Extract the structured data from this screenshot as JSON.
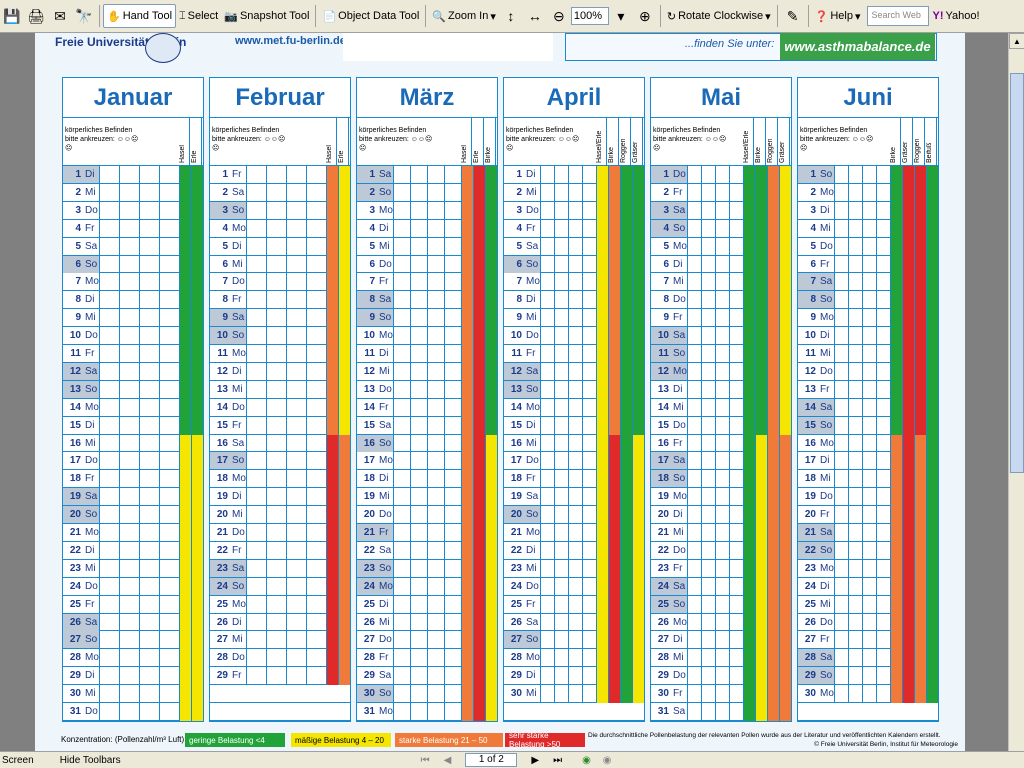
{
  "toolbar": {
    "hand_tool": "Hand Tool",
    "select": "Select",
    "snapshot_tool": "Snapshot Tool",
    "object_data_tool": "Object Data Tool",
    "zoom_in": "Zoom In",
    "zoom_value": "100%",
    "rotate_clockwise": "Rotate Clockwise",
    "help": "Help",
    "search_placeholder": "Search Web",
    "yahoo": "Yahoo!"
  },
  "statusbar": {
    "screen": "Screen",
    "hide_toolbars": "Hide Toolbars",
    "page_indicator": "1 of 2"
  },
  "header": {
    "university": "Freie Universität Berlin",
    "url_left": "www.met.fu-berlin.de",
    "find_text": "...finden Sie unter:",
    "url_right": "www.asthmabalance.de"
  },
  "colors": {
    "green": "#22a33a",
    "yellow": "#f4e600",
    "orange": "#ef7a3a",
    "red": "#e02a2a",
    "weekend": "#bdc9d6",
    "grid": "#1a8ad0"
  },
  "months": [
    {
      "name": "Januar",
      "header_text": "körperliches Befinden bitte ankreuzen:",
      "pollen": [
        "Hasel",
        "Erle"
      ],
      "days": 31,
      "weekday_start": "Di",
      "weekends": [
        1,
        6,
        12,
        13,
        19,
        20,
        26,
        27
      ],
      "segments": [
        [
          [
            "green",
            1,
            15
          ],
          [
            "yellow",
            16,
            31
          ]
        ],
        [
          [
            "green",
            1,
            15
          ],
          [
            "yellow",
            16,
            31
          ]
        ]
      ]
    },
    {
      "name": "Februar",
      "header_text": "körperliches Befinden bitte ankreuzen:",
      "pollen": [
        "Hasel",
        "Erle"
      ],
      "days": 29,
      "weekday_start": "Fr",
      "weekends": [
        3,
        9,
        10,
        17,
        23,
        24
      ],
      "segments": [
        [
          [
            "orange",
            1,
            15
          ],
          [
            "red",
            16,
            29
          ]
        ],
        [
          [
            "yellow",
            1,
            15
          ],
          [
            "orange",
            16,
            29
          ]
        ]
      ]
    },
    {
      "name": "März",
      "header_text": "körperliches Befinden bitte ankreuzen:",
      "pollen": [
        "Hasel",
        "Erle",
        "Birke"
      ],
      "days": 31,
      "weekday_start": "Sa",
      "weekends": [
        1,
        2,
        8,
        9,
        16,
        21,
        23,
        24,
        30
      ],
      "segments": [
        [
          [
            "orange",
            1,
            31
          ]
        ],
        [
          [
            "red",
            1,
            31
          ]
        ],
        [
          [
            "green",
            1,
            15
          ],
          [
            "yellow",
            16,
            31
          ]
        ]
      ]
    },
    {
      "name": "April",
      "header_text": "körperliches Befinden bitte ankreuzen:",
      "pollen": [
        "Hasel/Erle",
        "Birke",
        "Roggen",
        "Gräser"
      ],
      "days": 30,
      "weekday_start": "Di",
      "weekends": [
        6,
        12,
        13,
        20,
        27
      ],
      "segments": [
        [
          [
            "yellow",
            1,
            30
          ]
        ],
        [
          [
            "orange",
            1,
            15
          ],
          [
            "red",
            16,
            30
          ]
        ],
        [
          [
            "green",
            1,
            30
          ]
        ],
        [
          [
            "green",
            1,
            15
          ],
          [
            "yellow",
            16,
            30
          ]
        ]
      ]
    },
    {
      "name": "Mai",
      "header_text": "körperliches Befinden bitte ankreuzen:",
      "pollen": [
        "Hasel/Erle",
        "Birke",
        "Roggen",
        "Gräser"
      ],
      "days": 31,
      "weekday_start": "Do",
      "weekends": [
        1,
        3,
        4,
        10,
        11,
        12,
        17,
        18,
        24,
        25
      ],
      "segments": [
        [
          [
            "green",
            1,
            31
          ]
        ],
        [
          [
            "green",
            1,
            15
          ],
          [
            "yellow",
            16,
            31
          ]
        ],
        [
          [
            "orange",
            1,
            31
          ]
        ],
        [
          [
            "yellow",
            1,
            15
          ],
          [
            "orange",
            16,
            31
          ]
        ]
      ]
    },
    {
      "name": "Juni",
      "header_text": "körperliches Befinden bitte ankreuzen:",
      "pollen": [
        "Birke",
        "Gräser",
        "Roggen",
        "Beifuß"
      ],
      "days": 30,
      "weekday_start": "So",
      "weekends": [
        1,
        7,
        8,
        14,
        15,
        21,
        22,
        28,
        29
      ],
      "segments": [
        [
          [
            "green",
            1,
            15
          ],
          [
            "orange",
            16,
            30
          ]
        ],
        [
          [
            "red",
            1,
            30
          ]
        ],
        [
          [
            "red",
            1,
            15
          ],
          [
            "orange",
            16,
            30
          ]
        ],
        [
          [
            "green",
            1,
            30
          ]
        ]
      ]
    }
  ],
  "legend": {
    "label": "Konzentration: (Pollenzahl/m³ Luft)",
    "items": [
      {
        "text": "geringe Belastung <4",
        "color": "#22a33a"
      },
      {
        "text": "mäßige Belastung 4 – 20",
        "color": "#f4e600"
      },
      {
        "text": "starke Belastung 21 – 50",
        "color": "#ef7a3a"
      },
      {
        "text": "sehr starke Belastung >50",
        "color": "#e02a2a"
      }
    ],
    "note": "Die durchschnittliche Pollenbelastung der relevanten Pollen wurde aus der Literatur und veröffentlichten Kalendern erstellt.",
    "credit": "© Freie Universität Berlin, Institut für Meteorologie"
  }
}
